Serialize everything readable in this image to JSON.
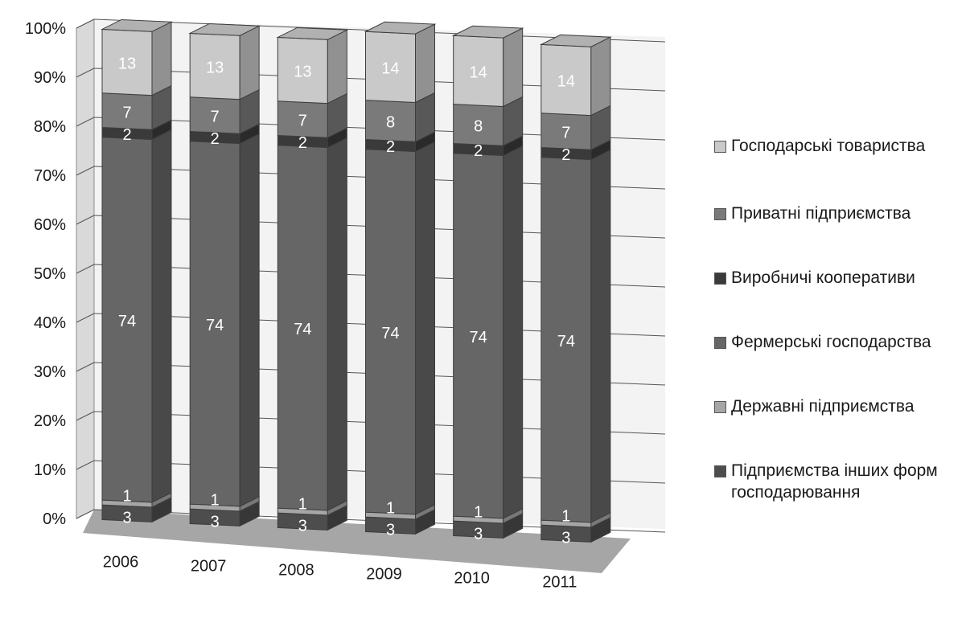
{
  "chart_data": {
    "type": "bar",
    "stacked": "100%",
    "three_d": true,
    "categories": [
      "2006",
      "2007",
      "2008",
      "2009",
      "2010",
      "2011"
    ],
    "y_tick_labels": [
      "0%",
      "10%",
      "20%",
      "30%",
      "40%",
      "50%",
      "60%",
      "70%",
      "80%",
      "90%",
      "100%"
    ],
    "ylim": [
      0,
      100
    ],
    "grid": true,
    "legend_position": "right",
    "series": [
      {
        "name": "Підприємства інших форм господарювання",
        "color": "#4d4d4d",
        "values": [
          3,
          3,
          3,
          3,
          3,
          3
        ]
      },
      {
        "name": "Державні підприємства",
        "color": "#a6a6a6",
        "values": [
          1,
          1,
          1,
          1,
          1,
          1
        ]
      },
      {
        "name": "Фермерські господарства",
        "color": "#666666",
        "values": [
          74,
          74,
          74,
          74,
          74,
          74
        ]
      },
      {
        "name": "Виробничі кооперативи",
        "color": "#3a3a3a",
        "values": [
          2,
          2,
          2,
          2,
          2,
          2
        ]
      },
      {
        "name": "Приватні підприємства",
        "color": "#7a7a7a",
        "values": [
          7,
          7,
          7,
          8,
          8,
          7
        ]
      },
      {
        "name": "Господарські товариства",
        "color": "#c9c9c9",
        "values": [
          13,
          13,
          13,
          14,
          14,
          14
        ]
      }
    ]
  },
  "legend": {
    "items": [
      {
        "label": "Господарські товариства",
        "color": "#c9c9c9"
      },
      {
        "label": "Приватні підприємства",
        "color": "#7a7a7a"
      },
      {
        "label": "Виробничі кооперативи",
        "color": "#3a3a3a"
      },
      {
        "label": "Фермерські господарства",
        "color": "#666666"
      },
      {
        "label": "Державні підприємства",
        "color": "#a6a6a6"
      },
      {
        "label": "Підприємства інших форм\nгосподарювання",
        "color": "#4d4d4d"
      }
    ]
  }
}
